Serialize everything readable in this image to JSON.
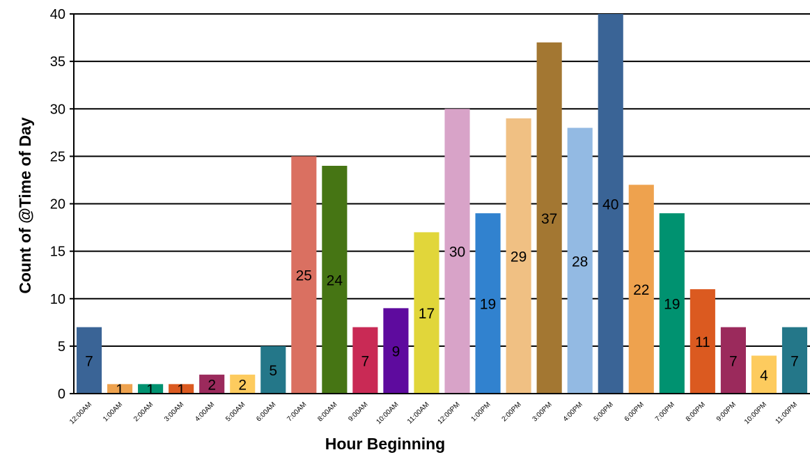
{
  "chart_data": {
    "type": "bar",
    "xlabel": "Hour Beginning",
    "ylabel": "Count of @Time of Day",
    "ylim": [
      0,
      40
    ],
    "yticks": [
      "0",
      "5",
      "10",
      "15",
      "20",
      "25",
      "30",
      "35",
      "40"
    ],
    "grid": true,
    "legend": "none",
    "categories": [
      "12:00AM",
      "1:00AM",
      "2:00AM",
      "3:00AM",
      "4:00AM",
      "5:00AM",
      "6:00AM",
      "7:00AM",
      "8:00AM",
      "9:00AM",
      "10:00AM",
      "11:00AM",
      "12:00PM",
      "1:00PM",
      "2:00PM",
      "3:00PM",
      "4:00PM",
      "5:00PM",
      "6:00PM",
      "7:00PM",
      "8:00PM",
      "9:00PM",
      "10:00PM",
      "11:00PM"
    ],
    "values": [
      7,
      1,
      1,
      1,
      2,
      2,
      5,
      25,
      24,
      7,
      9,
      17,
      30,
      19,
      29,
      37,
      28,
      40,
      22,
      19,
      11,
      7,
      4,
      7
    ],
    "colors": [
      "#3a6496",
      "#eea24e",
      "#009270",
      "#db5a20",
      "#9b2a5c",
      "#fdcb5e",
      "#247789",
      "#da7061",
      "#467514",
      "#c92a55",
      "#5e0b9e",
      "#e1d63a",
      "#d8a3c8",
      "#3182cf",
      "#f0c083",
      "#a37732",
      "#93bae3",
      "#3a6496",
      "#eea24e",
      "#009270",
      "#db5a20",
      "#9b2a5c",
      "#fdcb5e",
      "#247789"
    ]
  }
}
